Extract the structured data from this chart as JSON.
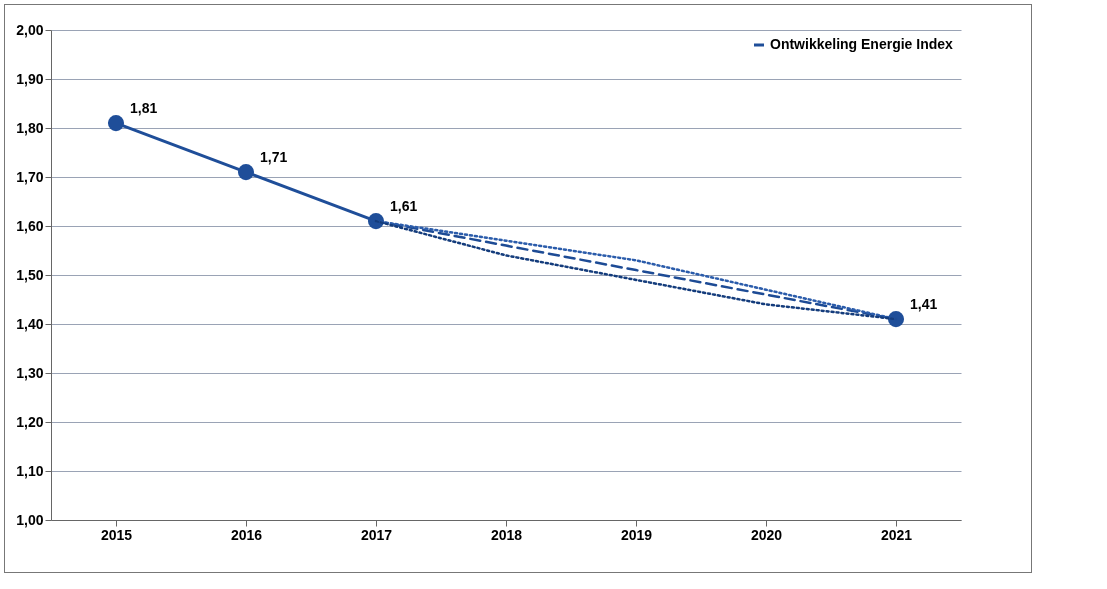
{
  "chart_data": {
    "type": "line",
    "categories": [
      "2015",
      "2016",
      "2017",
      "2018",
      "2019",
      "2020",
      "2021"
    ],
    "ylim": [
      1,
      2
    ],
    "yticks": [
      {
        "value": 1,
        "label": "1,00"
      },
      {
        "value": 1.1,
        "label": "1,10"
      },
      {
        "value": 1.2,
        "label": "1,20"
      },
      {
        "value": 1.3,
        "label": "1,30"
      },
      {
        "value": 1.4,
        "label": "1,40"
      },
      {
        "value": 1.5,
        "label": "1,50"
      },
      {
        "value": 1.6,
        "label": "1,60"
      },
      {
        "value": 1.7,
        "label": "1,70"
      },
      {
        "value": 1.8,
        "label": "1,80"
      },
      {
        "value": 1.9,
        "label": "1,90"
      },
      {
        "value": 2,
        "label": "2,00"
      }
    ],
    "grid": "y",
    "legend": "top right",
    "series": [
      {
        "name": "Ontwikkeling Energie Index",
        "color": "#1f4e99",
        "marker": "circle",
        "line_style": "solid",
        "values": [
          1.81,
          1.71,
          1.61,
          null,
          null,
          null,
          1.41
        ],
        "value_labels": [
          "1,81",
          "1,71",
          "1,61",
          null,
          null,
          null,
          "1,41"
        ]
      },
      {
        "color": "#1d4b95",
        "line_style": "dashed",
        "values": [
          null,
          null,
          1.61,
          1.56,
          1.51,
          1.46,
          1.41
        ]
      },
      {
        "color": "#2b5cab",
        "line_style": "dotted",
        "values": [
          null,
          null,
          1.61,
          1.57,
          1.53,
          1.47,
          1.41
        ]
      },
      {
        "color": "#143c7c",
        "line_style": "dotted",
        "values": [
          null,
          null,
          1.61,
          1.54,
          1.49,
          1.44,
          1.41
        ]
      }
    ]
  }
}
